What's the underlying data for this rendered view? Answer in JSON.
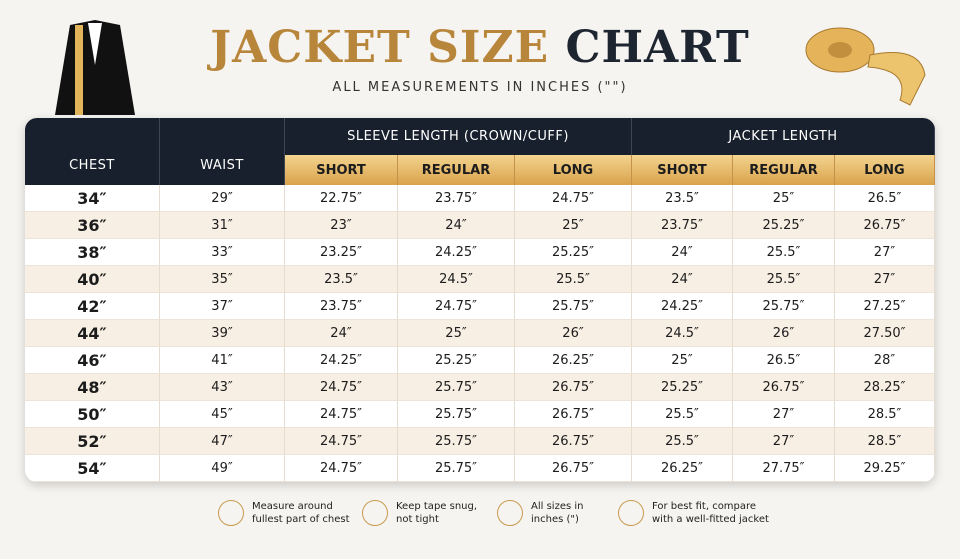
{
  "header": {
    "title_gold": "JACKET SIZE",
    "title_dark": "CHART",
    "subtitle": "ALL MEASUREMENTS IN INCHES (\"\")"
  },
  "table": {
    "chest_header": "CHEST",
    "waist_header": "WAIST",
    "groups": [
      "SLEEVE LENGTH (CROWN/CUFF)",
      "JACKET LENGTH"
    ],
    "subheaders": [
      "SHORT",
      "REGULAR",
      "LONG",
      "SHORT",
      "REGULAR",
      "LONG"
    ],
    "rows": [
      [
        "34″",
        "29″",
        "22.75″",
        "23.75″",
        "24.75″",
        "23.5″",
        "25″",
        "26.5″"
      ],
      [
        "36″",
        "31″",
        "23″",
        "24″",
        "25″",
        "23.75″",
        "25.25″",
        "26.75″"
      ],
      [
        "38″",
        "33″",
        "23.25″",
        "24.25″",
        "25.25″",
        "24″",
        "25.5″",
        "27″"
      ],
      [
        "40″",
        "35″",
        "23.5″",
        "24.5″",
        "25.5″",
        "24″",
        "25.5″",
        "27″"
      ],
      [
        "42″",
        "37″",
        "23.75″",
        "24.75″",
        "25.75″",
        "24.25″",
        "25.75″",
        "27.25″"
      ],
      [
        "44″",
        "39″",
        "24″",
        "25″",
        "26″",
        "24.5″",
        "26″",
        "27.50″"
      ],
      [
        "46″",
        "41″",
        "24.25″",
        "25.25″",
        "26.25″",
        "25″",
        "26.5″",
        "28″"
      ],
      [
        "48″",
        "43″",
        "24.75″",
        "25.75″",
        "26.75″",
        "25.25″",
        "26.75″",
        "28.25″"
      ],
      [
        "50″",
        "45″",
        "24.75″",
        "25.75″",
        "26.75″",
        "25.5″",
        "27″",
        "28.5″"
      ],
      [
        "52″",
        "47″",
        "24.75″",
        "25.75″",
        "26.75″",
        "25.5″",
        "27″",
        "28.5″"
      ],
      [
        "54″",
        "49″",
        "24.75″",
        "25.75″",
        "26.75″",
        "26.25″",
        "27.75″",
        "29.25″"
      ]
    ]
  },
  "footer": {
    "notes": [
      [
        "Measure around",
        "fullest part of chest"
      ],
      [
        "Keep tape snug,",
        "not tight"
      ],
      [
        "All sizes in",
        "inches (\")"
      ],
      [
        "For best fit, compare",
        "with a well-fitted jacket"
      ]
    ]
  }
}
